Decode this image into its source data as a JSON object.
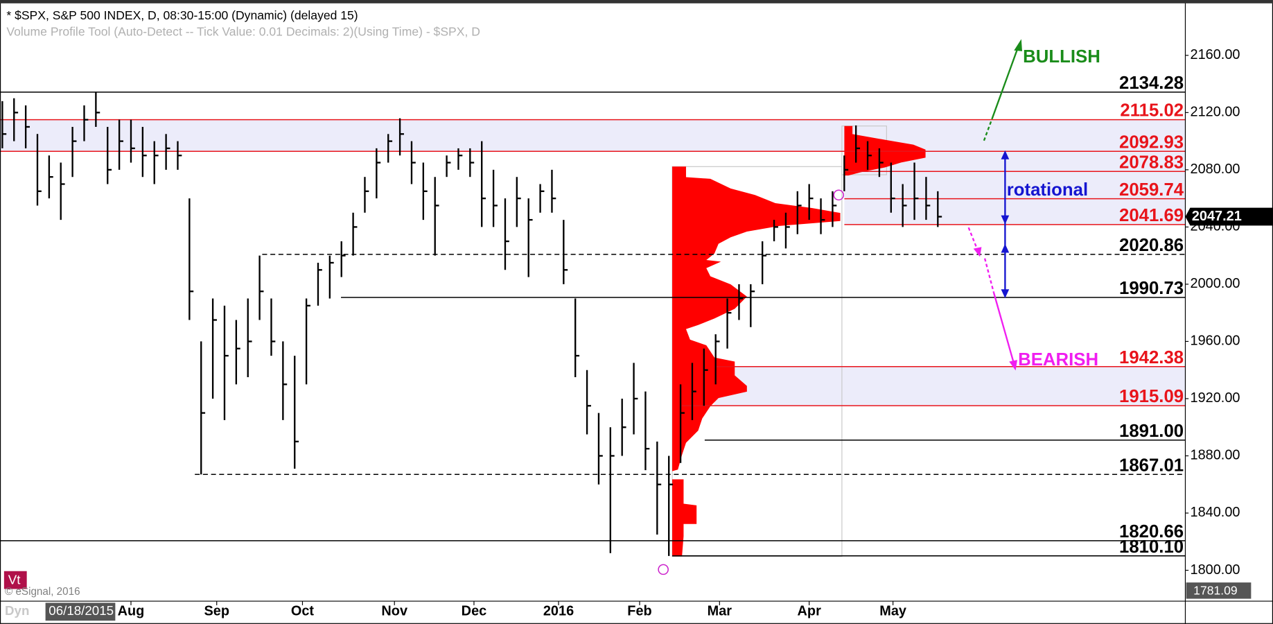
{
  "chart_data": {
    "type": "ohlc",
    "title": "* $SPX, S&P 500 INDEX, D, 08:30-15:00 (Dynamic) (delayed 15)",
    "subtitle": "Volume Profile Tool (Auto-Detect -- Tick Value: 0.01 Decimals: 2)(Using Time) - $SPX, D",
    "x": [
      0,
      3,
      6,
      9,
      12,
      15,
      18,
      21,
      24,
      27,
      30,
      33,
      36,
      39,
      42,
      45,
      48,
      51,
      54,
      57,
      60,
      63,
      66,
      69,
      72,
      75,
      78,
      81,
      84,
      87,
      90,
      93,
      96,
      99,
      102,
      105,
      108,
      111,
      114,
      117,
      120,
      123,
      126,
      129,
      132,
      135,
      138,
      141,
      144,
      147,
      150,
      153,
      156,
      159,
      162,
      165,
      168,
      171,
      174,
      177,
      180,
      183,
      186,
      189,
      192,
      195,
      198,
      201,
      204,
      207,
      210,
      213,
      216,
      219,
      222,
      225,
      228,
      231,
      234,
      237,
      240
    ],
    "high": [
      2128,
      2130,
      2125,
      2105,
      2090,
      2085,
      2110,
      2125,
      2134,
      2110,
      2115,
      2115,
      2110,
      2100,
      2105,
      2100,
      2060,
      1960,
      1990,
      1985,
      1975,
      1990,
      2020,
      1990,
      1960,
      1950,
      1990,
      2015,
      2020,
      2030,
      2050,
      2075,
      2095,
      2105,
      2116,
      2100,
      2085,
      2075,
      2090,
      2095,
      2095,
      2100,
      2080,
      2060,
      2075,
      2060,
      2070,
      2080,
      2045,
      1990,
      1940,
      1910,
      1900,
      1920,
      1945,
      1925,
      1890,
      1880,
      1930,
      1945,
      1955,
      1965,
      1990,
      2000,
      2000,
      2030,
      2045,
      2050,
      2065,
      2070,
      2060,
      2065,
      2090,
      2111,
      2100,
      2095,
      2085,
      2070,
      2085,
      2075,
      2065
    ],
    "low": [
      2095,
      2100,
      2095,
      2055,
      2060,
      2045,
      2075,
      2100,
      2110,
      2070,
      2080,
      2085,
      2075,
      2070,
      2080,
      2080,
      1975,
      1867,
      1920,
      1905,
      1930,
      1935,
      1975,
      1950,
      1905,
      1871,
      1930,
      1985,
      1990,
      2005,
      2020,
      2050,
      2060,
      2085,
      2090,
      2070,
      2045,
      2020,
      2075,
      2080,
      2075,
      2040,
      2040,
      2010,
      2040,
      2005,
      2050,
      2050,
      2000,
      1935,
      1895,
      1860,
      1812,
      1880,
      1895,
      1870,
      1825,
      1810,
      1875,
      1905,
      1915,
      1930,
      1955,
      1975,
      1970,
      2000,
      2030,
      2025,
      2035,
      2045,
      2035,
      2040,
      2065,
      2085,
      2080,
      2075,
      2050,
      2040,
      2045,
      2045,
      2040
    ],
    "close": [
      2105,
      2120,
      2110,
      2065,
      2075,
      2070,
      2100,
      2115,
      2120,
      2080,
      2100,
      2095,
      2090,
      2090,
      2095,
      2090,
      1995,
      1910,
      1975,
      1950,
      1955,
      1960,
      1995,
      1960,
      1930,
      1890,
      1985,
      2010,
      2015,
      2020,
      2040,
      2065,
      2085,
      2100,
      2105,
      2085,
      2065,
      2055,
      2085,
      2090,
      2085,
      2060,
      2055,
      2030,
      2060,
      2045,
      2065,
      2060,
      2010,
      1950,
      1915,
      1880,
      1880,
      1900,
      1920,
      1885,
      1860,
      1860,
      1910,
      1925,
      1940,
      1960,
      1980,
      1990,
      1995,
      2020,
      2040,
      2040,
      2055,
      2060,
      2045,
      2055,
      2080,
      2095,
      2090,
      2085,
      2060,
      2055,
      2060,
      2055,
      2047.21
    ],
    "xlim": [
      -0.6,
      303.5
    ],
    "xticks": [
      {
        "value": 33,
        "label": "Aug"
      },
      {
        "value": 55,
        "label": "Sep"
      },
      {
        "value": 77,
        "label": "Oct"
      },
      {
        "value": 100.6,
        "label": "Nov"
      },
      {
        "value": 121,
        "label": "Dec"
      },
      {
        "value": 142.7,
        "label": "2016"
      },
      {
        "value": 163.5,
        "label": "Feb"
      },
      {
        "value": 184,
        "label": "Mar"
      },
      {
        "value": 207,
        "label": "Apr"
      },
      {
        "value": 228.5,
        "label": "May"
      }
    ],
    "ylim": [
      1778.4,
      2195.8
    ],
    "yticks": [
      {
        "value": 1800,
        "label": "1800.00"
      },
      {
        "value": 1840,
        "label": "1840.00"
      },
      {
        "value": 1880,
        "label": "1880.00"
      },
      {
        "value": 1920,
        "label": "1920.00"
      },
      {
        "value": 1960,
        "label": "1960.00"
      },
      {
        "value": 2000,
        "label": "2000.00"
      },
      {
        "value": 2040,
        "label": "2040.00"
      },
      {
        "value": 2080,
        "label": "2080.00"
      },
      {
        "value": 2120,
        "label": "2120.00"
      },
      {
        "value": 2160,
        "label": "2160.00"
      }
    ],
    "bar_color": "#000000",
    "levels": [
      {
        "value": 2134.28,
        "label": "2134.28",
        "color": "#000000",
        "dashed": false
      },
      {
        "value": 2115.02,
        "label": "2115.02",
        "color": "#e8141b",
        "dashed": false
      },
      {
        "value": 2092.93,
        "label": "2092.93",
        "color": "#e8141b",
        "dashed": false
      },
      {
        "value": 2078.83,
        "label": "2078.83",
        "color": "#e8141b",
        "dashed": false
      },
      {
        "value": 2059.74,
        "label": "2059.74",
        "color": "#e8141b",
        "dashed": false
      },
      {
        "value": 2041.69,
        "label": "2041.69",
        "color": "#e8141b",
        "dashed": false
      },
      {
        "value": 2020.86,
        "label": "2020.86",
        "color": "#000000",
        "dashed": true
      },
      {
        "value": 1990.73,
        "label": "1990.73",
        "color": "#000000",
        "dashed": false
      },
      {
        "value": 1942.38,
        "label": "1942.38",
        "color": "#e8141b",
        "dashed": false
      },
      {
        "value": 1915.09,
        "label": "1915.09",
        "color": "#e8141b",
        "dashed": false
      },
      {
        "value": 1891.0,
        "label": "1891.00",
        "color": "#000000",
        "dashed": false
      },
      {
        "value": 1867.01,
        "label": "1867.01",
        "color": "#000000",
        "dashed": true
      },
      {
        "value": 1820.66,
        "label": "1820.66",
        "color": "#000000",
        "dashed": false
      },
      {
        "value": 1810.1,
        "label": "1810.10",
        "color": "#000000",
        "dashed": false
      }
    ],
    "band_color": "#ececfa",
    "last_price": 2047.21,
    "axis_bottom_label": "1781.09",
    "annotations": [
      {
        "text": "BULLISH",
        "color": "#1a8c1a"
      },
      {
        "text": "rotational",
        "color": "#1515d0"
      },
      {
        "text": "BEARISH",
        "color": "#f01ef0"
      }
    ],
    "copyright": "© eSignal, 2016",
    "badge": "Vt",
    "start_date": "06/18/2015",
    "partial_label": "Dyn"
  }
}
